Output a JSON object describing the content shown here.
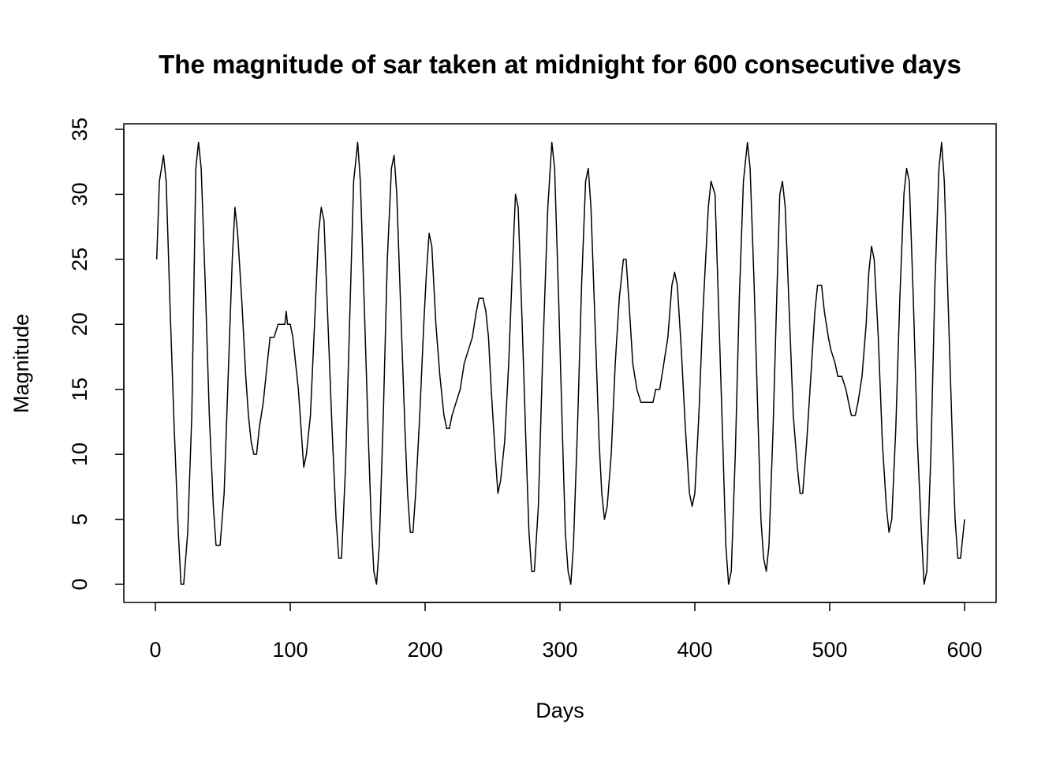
{
  "chart_data": {
    "type": "line",
    "title": "The magnitude of sar taken at midnight for 600 consecutive days",
    "xlabel": "Days",
    "ylabel": "Magnitude",
    "xlim": [
      0,
      600
    ],
    "ylim": [
      0,
      35
    ],
    "xticks": [
      "0",
      "100",
      "200",
      "300",
      "400",
      "500",
      "600"
    ],
    "yticks": [
      "0",
      "5",
      "10",
      "15",
      "20",
      "25",
      "30",
      "35"
    ],
    "grid": false,
    "legend": "none",
    "line_color": "#000000",
    "series": [
      {
        "values": [
          [
            1,
            25
          ],
          [
            3,
            31
          ],
          [
            6,
            33
          ],
          [
            8,
            31
          ],
          [
            11,
            21
          ],
          [
            14,
            12
          ],
          [
            17,
            4
          ],
          [
            19,
            0
          ],
          [
            21,
            0
          ],
          [
            24,
            4
          ],
          [
            27,
            13
          ],
          [
            30,
            32
          ],
          [
            32,
            34
          ],
          [
            34,
            32
          ],
          [
            37,
            23
          ],
          [
            40,
            13
          ],
          [
            43,
            6
          ],
          [
            45,
            3
          ],
          [
            48,
            3
          ],
          [
            51,
            7
          ],
          [
            54,
            16
          ],
          [
            57,
            25
          ],
          [
            59,
            29
          ],
          [
            61,
            27
          ],
          [
            64,
            22
          ],
          [
            67,
            16
          ],
          [
            69,
            13
          ],
          [
            71,
            11
          ],
          [
            73,
            10
          ],
          [
            75,
            10
          ],
          [
            77,
            12
          ],
          [
            80,
            14
          ],
          [
            83,
            17
          ],
          [
            85,
            19
          ],
          [
            88,
            19
          ],
          [
            91,
            20
          ],
          [
            94,
            20
          ],
          [
            96,
            20
          ],
          [
            97,
            21
          ],
          [
            98,
            20
          ],
          [
            100,
            20
          ],
          [
            102,
            19
          ],
          [
            104,
            17
          ],
          [
            106,
            15
          ],
          [
            108,
            12
          ],
          [
            110,
            9
          ],
          [
            112,
            10
          ],
          [
            115,
            13
          ],
          [
            118,
            20
          ],
          [
            121,
            27
          ],
          [
            123,
            29
          ],
          [
            125,
            28
          ],
          [
            128,
            20
          ],
          [
            131,
            12
          ],
          [
            134,
            5
          ],
          [
            136,
            2
          ],
          [
            138,
            2
          ],
          [
            141,
            9
          ],
          [
            144,
            20
          ],
          [
            147,
            31
          ],
          [
            150,
            34
          ],
          [
            152,
            31
          ],
          [
            155,
            21
          ],
          [
            158,
            11
          ],
          [
            160,
            5
          ],
          [
            162,
            1
          ],
          [
            164,
            0
          ],
          [
            166,
            3
          ],
          [
            169,
            13
          ],
          [
            172,
            25
          ],
          [
            175,
            32
          ],
          [
            177,
            33
          ],
          [
            179,
            30
          ],
          [
            182,
            21
          ],
          [
            185,
            12
          ],
          [
            187,
            7
          ],
          [
            189,
            4
          ],
          [
            191,
            4
          ],
          [
            193,
            7
          ],
          [
            196,
            13
          ],
          [
            199,
            20
          ],
          [
            201,
            24
          ],
          [
            203,
            27
          ],
          [
            205,
            26
          ],
          [
            208,
            20
          ],
          [
            211,
            16
          ],
          [
            214,
            13
          ],
          [
            216,
            12
          ],
          [
            218,
            12
          ],
          [
            220,
            13
          ],
          [
            223,
            14
          ],
          [
            226,
            15
          ],
          [
            229,
            17
          ],
          [
            232,
            18
          ],
          [
            235,
            19
          ],
          [
            238,
            21
          ],
          [
            240,
            22
          ],
          [
            243,
            22
          ],
          [
            245,
            21
          ],
          [
            247,
            19
          ],
          [
            249,
            15
          ],
          [
            252,
            10
          ],
          [
            254,
            7
          ],
          [
            256,
            8
          ],
          [
            259,
            11
          ],
          [
            262,
            17
          ],
          [
            265,
            25
          ],
          [
            267,
            30
          ],
          [
            269,
            29
          ],
          [
            272,
            20
          ],
          [
            275,
            10
          ],
          [
            277,
            4
          ],
          [
            279,
            1
          ],
          [
            281,
            1
          ],
          [
            284,
            6
          ],
          [
            287,
            17
          ],
          [
            291,
            29
          ],
          [
            294,
            34
          ],
          [
            296,
            32
          ],
          [
            299,
            22
          ],
          [
            302,
            11
          ],
          [
            304,
            4
          ],
          [
            306,
            1
          ],
          [
            308,
            0
          ],
          [
            310,
            3
          ],
          [
            313,
            12
          ],
          [
            316,
            23
          ],
          [
            319,
            31
          ],
          [
            321,
            32
          ],
          [
            323,
            29
          ],
          [
            326,
            20
          ],
          [
            329,
            11
          ],
          [
            331,
            7
          ],
          [
            333,
            5
          ],
          [
            335,
            6
          ],
          [
            338,
            10
          ],
          [
            341,
            17
          ],
          [
            344,
            22
          ],
          [
            347,
            25
          ],
          [
            349,
            25
          ],
          [
            351,
            22
          ],
          [
            354,
            17
          ],
          [
            357,
            15
          ],
          [
            360,
            14
          ],
          [
            363,
            14
          ],
          [
            366,
            14
          ],
          [
            369,
            14
          ],
          [
            371,
            15
          ],
          [
            374,
            15
          ],
          [
            377,
            17
          ],
          [
            380,
            19
          ],
          [
            383,
            23
          ],
          [
            385,
            24
          ],
          [
            387,
            23
          ],
          [
            390,
            18
          ],
          [
            393,
            12
          ],
          [
            396,
            7
          ],
          [
            398,
            6
          ],
          [
            400,
            7
          ],
          [
            403,
            13
          ],
          [
            406,
            21
          ],
          [
            410,
            29
          ],
          [
            412,
            31
          ],
          [
            415,
            30
          ],
          [
            418,
            20
          ],
          [
            421,
            10
          ],
          [
            423,
            3
          ],
          [
            425,
            0
          ],
          [
            427,
            1
          ],
          [
            430,
            10
          ],
          [
            433,
            22
          ],
          [
            436,
            31
          ],
          [
            439,
            34
          ],
          [
            441,
            32
          ],
          [
            444,
            23
          ],
          [
            447,
            12
          ],
          [
            449,
            5
          ],
          [
            451,
            2
          ],
          [
            453,
            1
          ],
          [
            455,
            3
          ],
          [
            458,
            12
          ],
          [
            461,
            23
          ],
          [
            463,
            30
          ],
          [
            465,
            31
          ],
          [
            467,
            29
          ],
          [
            470,
            21
          ],
          [
            473,
            13
          ],
          [
            476,
            9
          ],
          [
            478,
            7
          ],
          [
            480,
            7
          ],
          [
            483,
            11
          ],
          [
            486,
            16
          ],
          [
            489,
            21
          ],
          [
            491,
            23
          ],
          [
            494,
            23
          ],
          [
            496,
            21
          ],
          [
            499,
            19
          ],
          [
            501,
            18
          ],
          [
            504,
            17
          ],
          [
            506,
            16
          ],
          [
            509,
            16
          ],
          [
            512,
            15
          ],
          [
            514,
            14
          ],
          [
            516,
            13
          ],
          [
            519,
            13
          ],
          [
            521,
            14
          ],
          [
            524,
            16
          ],
          [
            527,
            20
          ],
          [
            529,
            24
          ],
          [
            531,
            26
          ],
          [
            533,
            25
          ],
          [
            536,
            19
          ],
          [
            539,
            11
          ],
          [
            542,
            6
          ],
          [
            544,
            4
          ],
          [
            546,
            5
          ],
          [
            549,
            12
          ],
          [
            552,
            22
          ],
          [
            555,
            30
          ],
          [
            557,
            32
          ],
          [
            559,
            31
          ],
          [
            562,
            22
          ],
          [
            565,
            11
          ],
          [
            568,
            4
          ],
          [
            570,
            0
          ],
          [
            572,
            1
          ],
          [
            575,
            10
          ],
          [
            578,
            23
          ],
          [
            581,
            32
          ],
          [
            583,
            34
          ],
          [
            585,
            31
          ],
          [
            588,
            21
          ],
          [
            591,
            11
          ],
          [
            593,
            5
          ],
          [
            595,
            2
          ],
          [
            597,
            2
          ],
          [
            599,
            4
          ],
          [
            600,
            5
          ]
        ]
      }
    ]
  }
}
